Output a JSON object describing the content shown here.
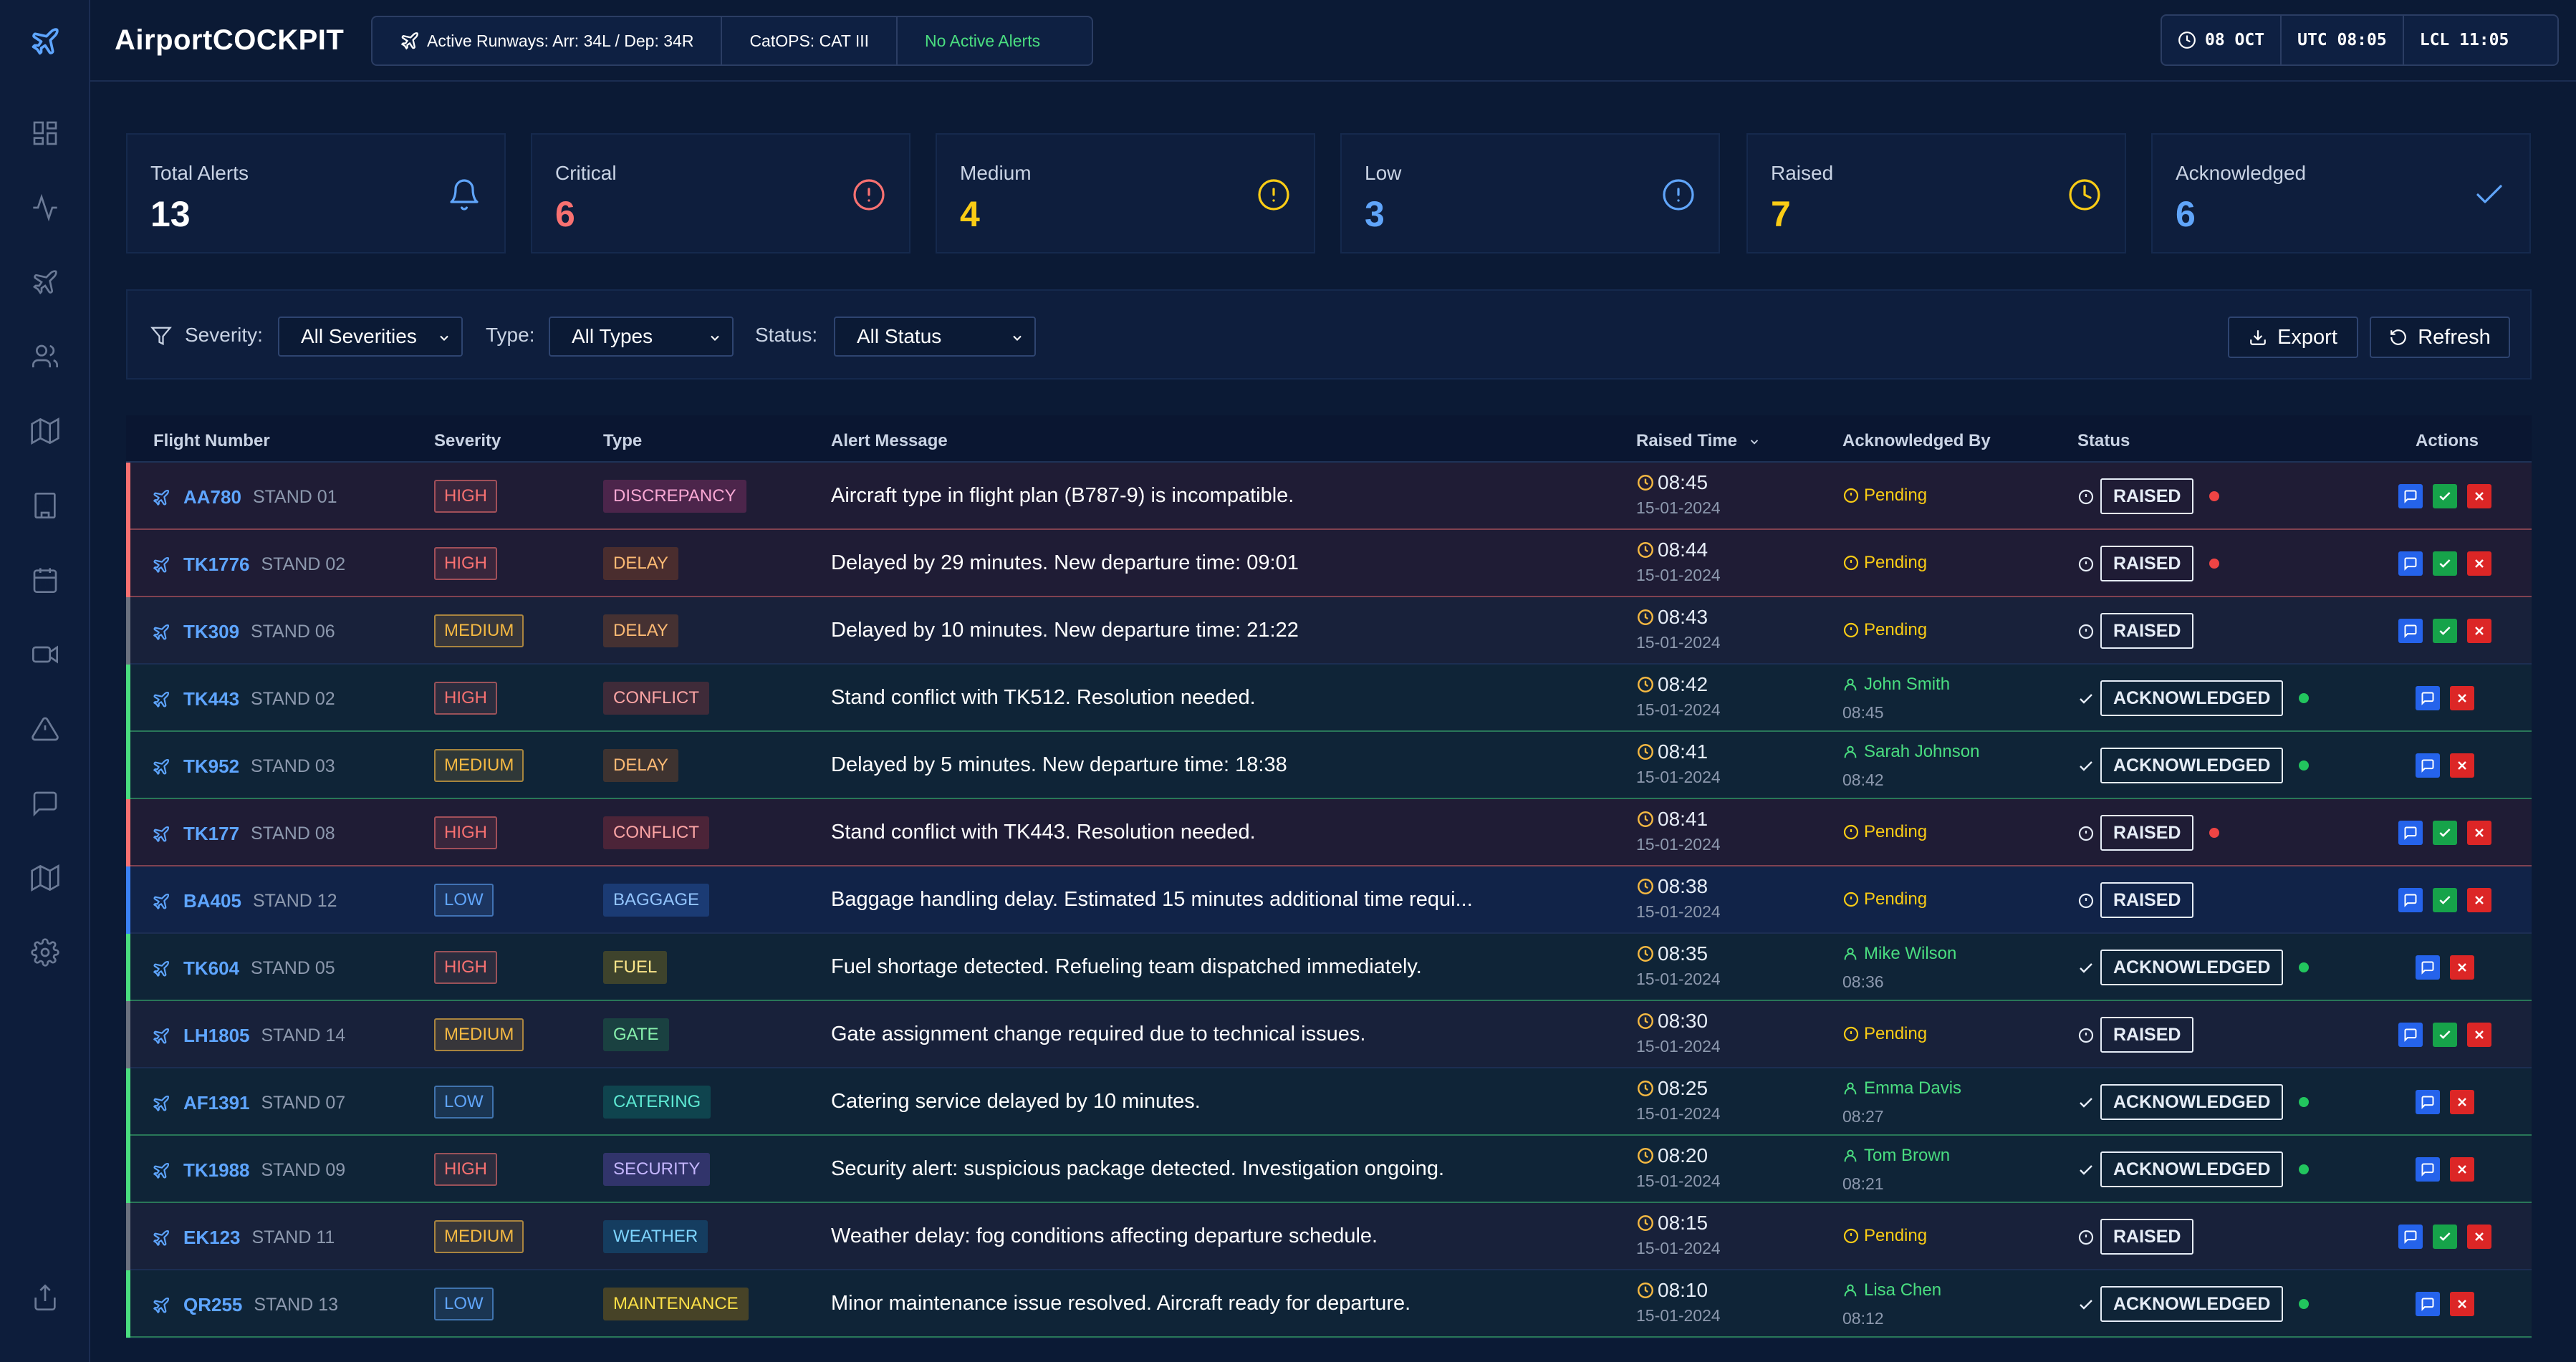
{
  "app": {
    "title": "AirportCOCKPIT"
  },
  "header": {
    "runways": "Active Runways: Arr: 34L / Dep: 34R",
    "catops": "CatOPS: CAT III",
    "alerts_status": "No Active Alerts",
    "date": "08 OCT",
    "utc": "UTC 08:05",
    "lcl": "LCL 11:05"
  },
  "sidebar": {
    "items": [
      "plane-logo-icon",
      "dashboard-icon",
      "activity-icon",
      "flights-icon",
      "users-icon",
      "map-icon",
      "building-icon",
      "calendar-icon",
      "video-icon",
      "alert-triangle-icon",
      "message-icon",
      "layers-map-icon",
      "settings-icon",
      "upload-icon"
    ]
  },
  "stats": [
    {
      "label": "Total Alerts",
      "value": "13",
      "color": "#ffffff",
      "icon": "bell-icon",
      "icon_color": "#60a5fa"
    },
    {
      "label": "Critical",
      "value": "6",
      "color": "#f87171",
      "icon": "alert-circle-icon",
      "icon_color": "#f87171"
    },
    {
      "label": "Medium",
      "value": "4",
      "color": "#facc15",
      "icon": "alert-circle-icon",
      "icon_color": "#facc15"
    },
    {
      "label": "Low",
      "value": "3",
      "color": "#60a5fa",
      "icon": "alert-circle-icon",
      "icon_color": "#60a5fa"
    },
    {
      "label": "Raised",
      "value": "7",
      "color": "#facc15",
      "icon": "clock-icon",
      "icon_color": "#facc15"
    },
    {
      "label": "Acknowledged",
      "value": "6",
      "color": "#60a5fa",
      "icon": "check-icon",
      "icon_color": "#60a5fa"
    }
  ],
  "filters": {
    "severity_label": "Severity:",
    "severity_value": "All Severities",
    "type_label": "Type:",
    "type_value": "All Types",
    "status_label": "Status:",
    "status_value": "All Status",
    "export_label": "Export",
    "refresh_label": "Refresh"
  },
  "table": {
    "columns": [
      "Flight Number",
      "Severity",
      "Type",
      "Alert Message",
      "Raised Time",
      "Acknowledged By",
      "Status",
      "Actions"
    ],
    "rows": [
      {
        "flight": "AA780",
        "stand": "STAND 01",
        "severity": "HIGH",
        "type": "DISCREPANCY",
        "message": "Aircraft type in flight plan (B787-9) is incompatible.",
        "time": "08:45",
        "date": "15-01-2024",
        "ack_by": "",
        "ack_at": "",
        "status": "RAISED"
      },
      {
        "flight": "TK1776",
        "stand": "STAND 02",
        "severity": "HIGH",
        "type": "DELAY",
        "message": "Delayed by 29 minutes. New departure time: 09:01",
        "time": "08:44",
        "date": "15-01-2024",
        "ack_by": "",
        "ack_at": "",
        "status": "RAISED"
      },
      {
        "flight": "TK309",
        "stand": "STAND 06",
        "severity": "MEDIUM",
        "type": "DELAY",
        "message": "Delayed by 10 minutes. New departure time: 21:22",
        "time": "08:43",
        "date": "15-01-2024",
        "ack_by": "",
        "ack_at": "",
        "status": "RAISED"
      },
      {
        "flight": "TK443",
        "stand": "STAND 02",
        "severity": "HIGH",
        "type": "CONFLICT",
        "message": "Stand conflict with TK512. Resolution needed.",
        "time": "08:42",
        "date": "15-01-2024",
        "ack_by": "John Smith",
        "ack_at": "08:45",
        "status": "ACKNOWLEDGED"
      },
      {
        "flight": "TK952",
        "stand": "STAND 03",
        "severity": "MEDIUM",
        "type": "DELAY",
        "message": "Delayed by 5 minutes. New departure time: 18:38",
        "time": "08:41",
        "date": "15-01-2024",
        "ack_by": "Sarah Johnson",
        "ack_at": "08:42",
        "status": "ACKNOWLEDGED"
      },
      {
        "flight": "TK177",
        "stand": "STAND 08",
        "severity": "HIGH",
        "type": "CONFLICT",
        "message": "Stand conflict with TK443. Resolution needed.",
        "time": "08:41",
        "date": "15-01-2024",
        "ack_by": "",
        "ack_at": "",
        "status": "RAISED"
      },
      {
        "flight": "BA405",
        "stand": "STAND 12",
        "severity": "LOW",
        "type": "BAGGAGE",
        "message": "Baggage handling delay. Estimated 15 minutes additional time requi...",
        "time": "08:38",
        "date": "15-01-2024",
        "ack_by": "",
        "ack_at": "",
        "status": "RAISED"
      },
      {
        "flight": "TK604",
        "stand": "STAND 05",
        "severity": "HIGH",
        "type": "FUEL",
        "message": "Fuel shortage detected. Refueling team dispatched immediately.",
        "time": "08:35",
        "date": "15-01-2024",
        "ack_by": "Mike Wilson",
        "ack_at": "08:36",
        "status": "ACKNOWLEDGED"
      },
      {
        "flight": "LH1805",
        "stand": "STAND 14",
        "severity": "MEDIUM",
        "type": "GATE",
        "message": "Gate assignment change required due to technical issues.",
        "time": "08:30",
        "date": "15-01-2024",
        "ack_by": "",
        "ack_at": "",
        "status": "RAISED"
      },
      {
        "flight": "AF1391",
        "stand": "STAND 07",
        "severity": "LOW",
        "type": "CATERING",
        "message": "Catering service delayed by 10 minutes.",
        "time": "08:25",
        "date": "15-01-2024",
        "ack_by": "Emma Davis",
        "ack_at": "08:27",
        "status": "ACKNOWLEDGED"
      },
      {
        "flight": "TK1988",
        "stand": "STAND 09",
        "severity": "HIGH",
        "type": "SECURITY",
        "message": "Security alert: suspicious package detected. Investigation ongoing.",
        "time": "08:20",
        "date": "15-01-2024",
        "ack_by": "Tom Brown",
        "ack_at": "08:21",
        "status": "ACKNOWLEDGED"
      },
      {
        "flight": "EK123",
        "stand": "STAND 11",
        "severity": "MEDIUM",
        "type": "WEATHER",
        "message": "Weather delay: fog conditions affecting departure schedule.",
        "time": "08:15",
        "date": "15-01-2024",
        "ack_by": "",
        "ack_at": "",
        "status": "RAISED"
      },
      {
        "flight": "QR255",
        "stand": "STAND 13",
        "severity": "LOW",
        "type": "MAINTENANCE",
        "message": "Minor maintenance issue resolved. Aircraft ready for departure.",
        "time": "08:10",
        "date": "15-01-2024",
        "ack_by": "Lisa Chen",
        "ack_at": "08:12",
        "status": "ACKNOWLEDGED"
      }
    ],
    "pending_label": "Pending"
  },
  "colors": {
    "high": "#f87171",
    "medium": "#f5b942",
    "low": "#60a5fa",
    "raised": "#f5b942",
    "acknowledged": "#4ade80",
    "accent": "#5ea5ff"
  }
}
